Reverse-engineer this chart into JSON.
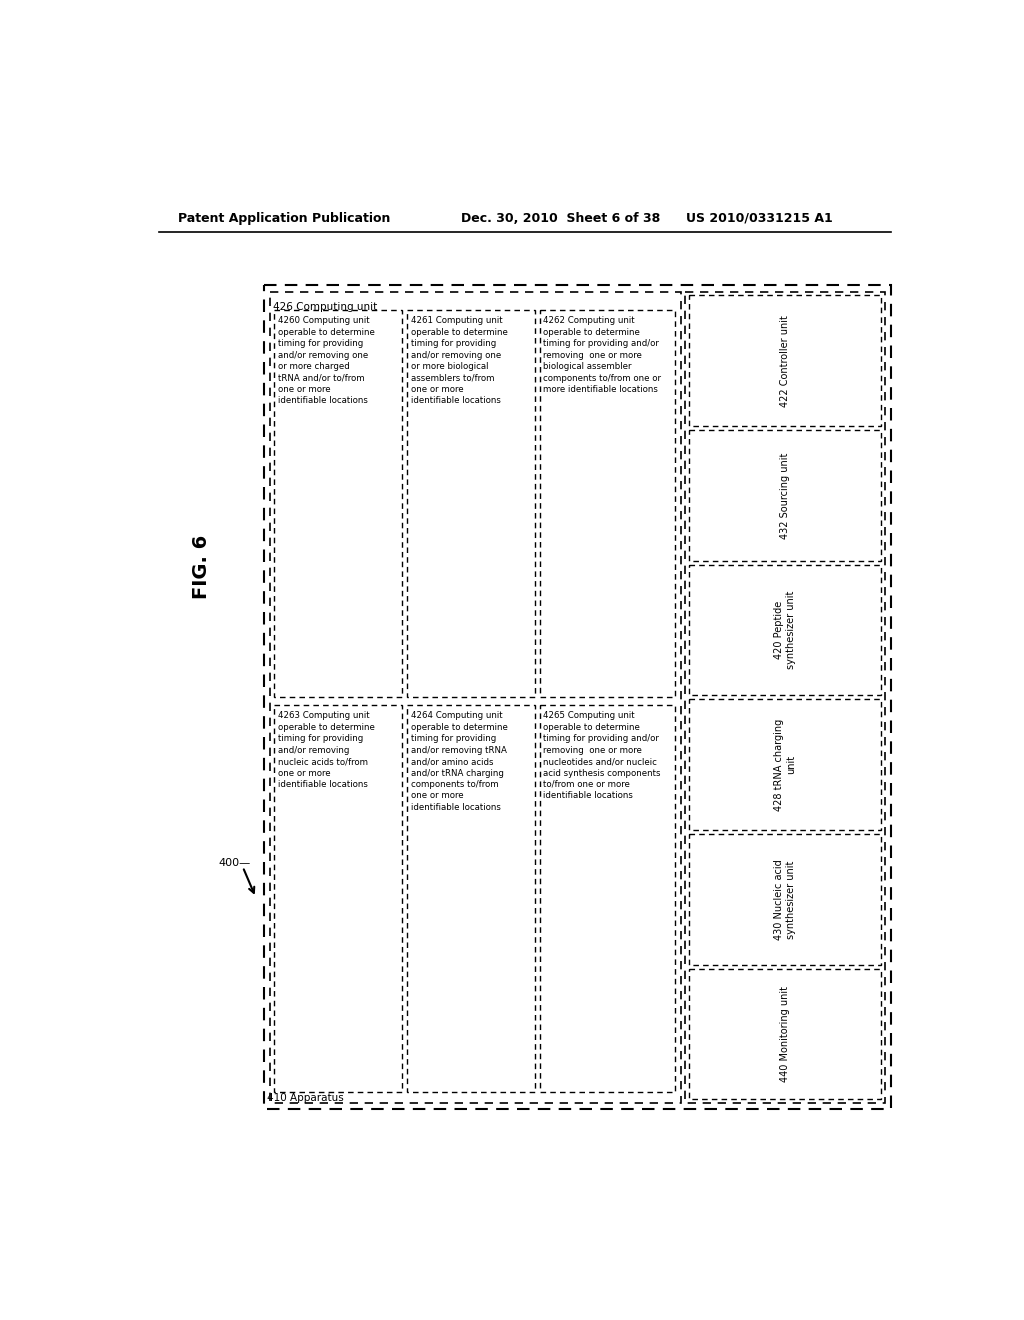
{
  "bg_color": "#ffffff",
  "header_text_left": "Patent Application Publication",
  "header_text_mid": "Dec. 30, 2010  Sheet 6 of 38",
  "header_text_right": "US 2010/0331215 A1",
  "fig_label": "FIG. 6",
  "arrow_label": "400—",
  "apparatus_label": "410 Apparatus",
  "computing_label": "426 Computing unit",
  "units_right": [
    "422 Controller unit",
    "432 Sourcing unit",
    "420 Peptide\nsynthesizer unit",
    "428 tRNA charging\nunit",
    "430 Nucleic acid\nsynthesizer unit",
    "440 Monitoring unit"
  ],
  "boxes_left_top": {
    "label": "4260 Computing unit\noperable to determine\ntiming for providing\nand/or removing one\nor more charged\ntRNA and/or to/from\none or more\nidentifiable locations"
  },
  "boxes_left_bot": {
    "label": "4263 Computing unit\noperable to determine\ntiming for providing\nand/or removing\nnucleic acids to/from\none or more\nidentifiable locations"
  },
  "boxes_mid_top": {
    "label": "4261 Computing unit\noperable to determine\ntiming for providing\nand/or removing one\nor more biological\nassemblers to/from\none or more\nidentifiable locations"
  },
  "boxes_mid_bot": {
    "label": "4264 Computing unit\noperable to determine\ntiming for providing\nand/or removing tRNA\nand/or amino acids\nand/or tRNA charging\ncomponents to/from\none or more\nidentifiable locations"
  },
  "boxes_right_top": {
    "label": "4262 Computing unit\noperable to determine\ntiming for providing and/or\nremoving  one or more\nbiological assembler\ncomponents to/from one or\nmore identifiable locations"
  },
  "boxes_right_bot": {
    "label": "4265 Computing unit\noperable to determine\ntiming for providing and/or\nremoving  one or more\nnucleotides and/or nucleic\nacid synthesis components\nto/from one or more\nidentifiable locations"
  }
}
